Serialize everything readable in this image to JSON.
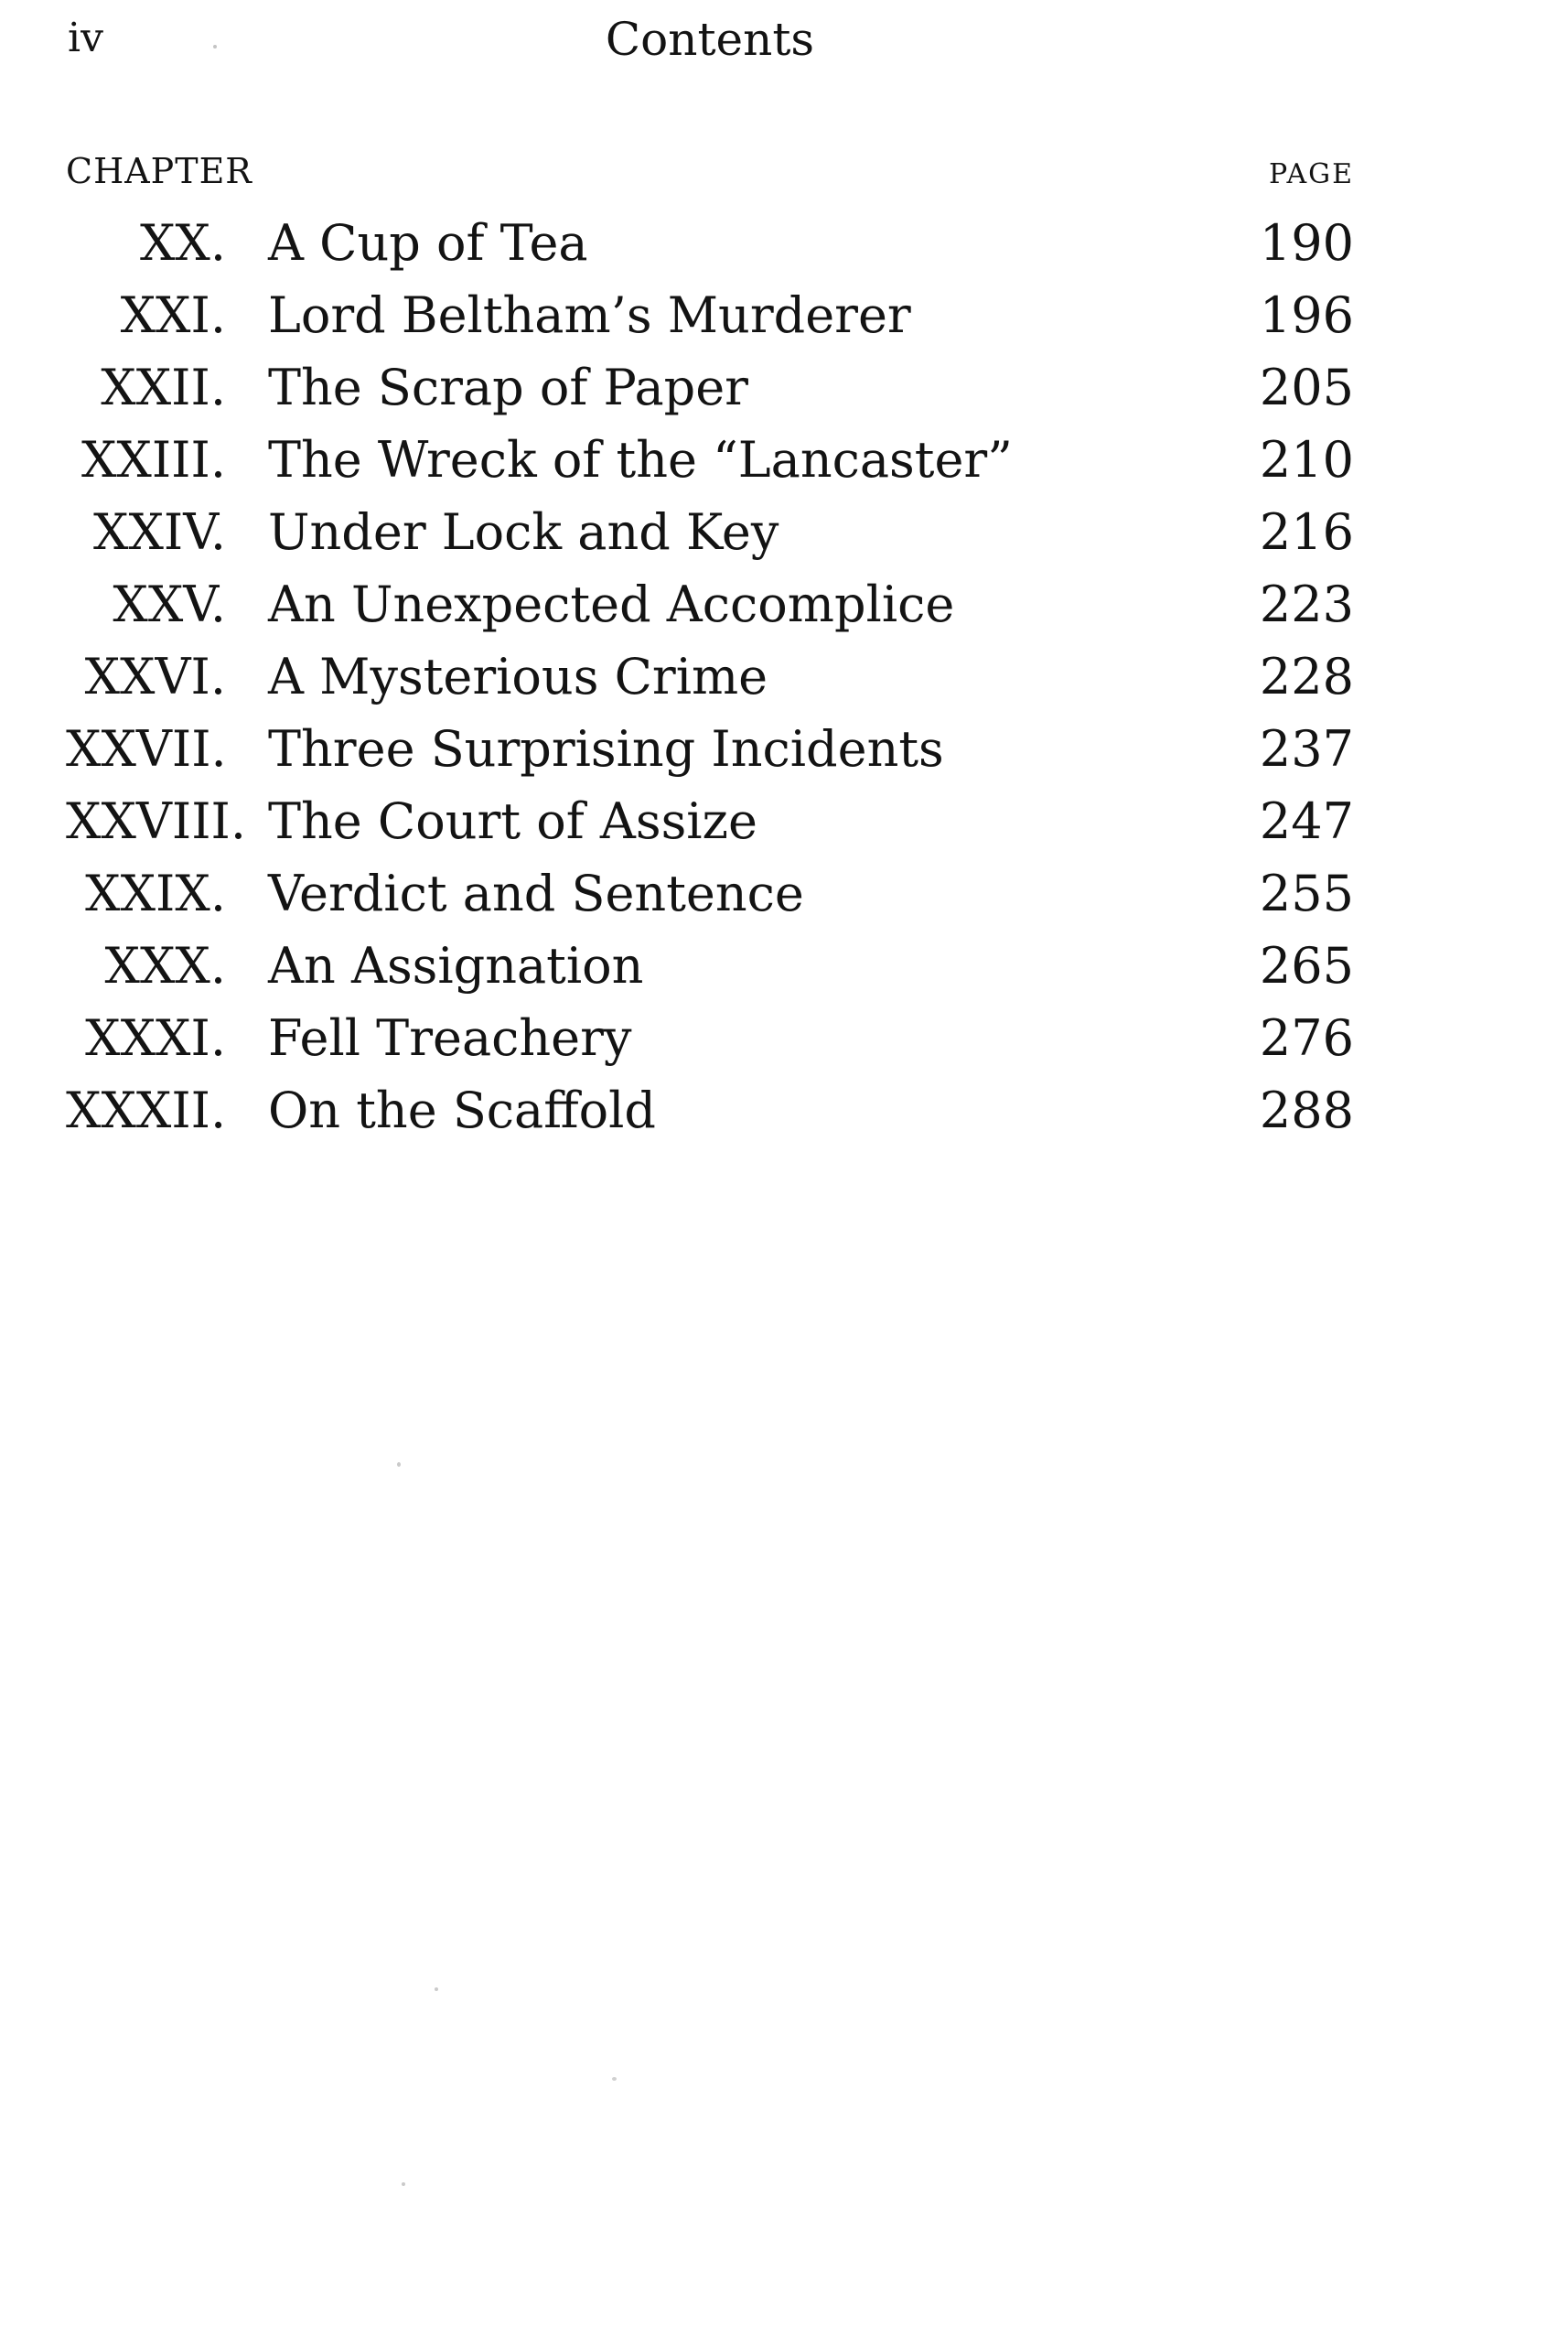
{
  "page": {
    "folio": "iv",
    "running_head": "Contents"
  },
  "toc": {
    "chapter_header": "CHAPTER",
    "page_header": "PAGE",
    "entries": [
      {
        "numeral": "XX.",
        "title": "A Cup of Tea",
        "page": "190"
      },
      {
        "numeral": "XXI.",
        "title": "Lord Beltham’s Murderer",
        "page": "196"
      },
      {
        "numeral": "XXII.",
        "title": "The Scrap of Paper",
        "page": "205"
      },
      {
        "numeral": "XXIII.",
        "title": "The Wreck of the “Lancaster”",
        "page": "210"
      },
      {
        "numeral": "XXIV.",
        "title": "Under Lock and Key",
        "page": "216"
      },
      {
        "numeral": "XXV.",
        "title": "An Unexpected Accomplice",
        "page": "223"
      },
      {
        "numeral": "XXVI.",
        "title": "A Mysterious Crime",
        "page": "228"
      },
      {
        "numeral": "XXVII.",
        "title": "Three Surprising Incidents",
        "page": "237"
      },
      {
        "numeral": "XXVIII.",
        "title": "The Court of Assize",
        "page": "247"
      },
      {
        "numeral": "XXIX.",
        "title": "Verdict and Sentence",
        "page": "255"
      },
      {
        "numeral": "XXX.",
        "title": "An Assignation",
        "page": "265"
      },
      {
        "numeral": "XXXI.",
        "title": "Fell Treachery",
        "page": "276"
      },
      {
        "numeral": "XXXII.",
        "title": "On the Scaffold",
        "page": "288"
      }
    ]
  },
  "colors": {
    "ink": "#131313",
    "paper": "#ffffff"
  }
}
